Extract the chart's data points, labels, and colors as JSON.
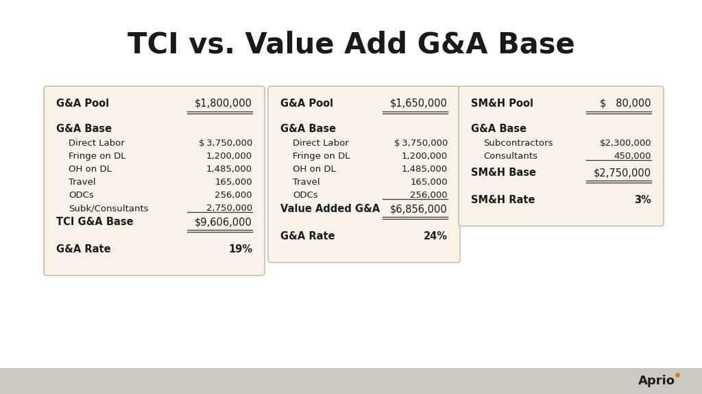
{
  "title": "TCI vs. Value Add G&A Base",
  "title_fontsize": 30,
  "title_fontweight": "bold",
  "bg_color": "#ffffff",
  "card_bg_color": "#f8f2e8",
  "card_border_color": "#c8bfaa",
  "bottom_bar_color": "#cbc9c2",
  "aprio_text": "Aprio",
  "panel1": {
    "title": "G&A Pool",
    "title_value": "$1,800,000",
    "section1_header": "G&A Base",
    "items": [
      [
        "Direct Labor",
        "$ 3,750,000"
      ],
      [
        "Fringe on DL",
        "1,200,000"
      ],
      [
        "OH on DL",
        "1,485,000"
      ],
      [
        "Travel",
        "165,000"
      ],
      [
        "ODCs",
        "256,000"
      ],
      [
        "Subk/Consultants",
        "2,750,000"
      ]
    ],
    "total_label": "TCI G&A Base",
    "total_value": "$9,606,000",
    "rate_label": "G&A Rate",
    "rate_value": "19%"
  },
  "panel2": {
    "title": "G&A Pool",
    "title_value": "$1,650,000",
    "section1_header": "G&A Base",
    "items": [
      [
        "Direct Labor",
        "$ 3,750,000"
      ],
      [
        "Fringe on DL",
        "1,200,000"
      ],
      [
        "OH on DL",
        "1,485,000"
      ],
      [
        "Travel",
        "165,000"
      ],
      [
        "ODCs",
        "256,000"
      ]
    ],
    "total_label": "Value Added G&A",
    "total_value": "$6,856,000",
    "rate_label": "G&A Rate",
    "rate_value": "24%"
  },
  "panel3": {
    "title": "SM&H Pool",
    "title_value": "$   80,000",
    "section1_header": "G&A Base",
    "items": [
      [
        "Subcontractors",
        "$2,300,000"
      ],
      [
        "Consultants",
        "450,000"
      ]
    ],
    "total_label": "SM&H Base",
    "total_value": "$2,750,000",
    "rate_label": "SM&H Rate",
    "rate_value": "3%"
  }
}
